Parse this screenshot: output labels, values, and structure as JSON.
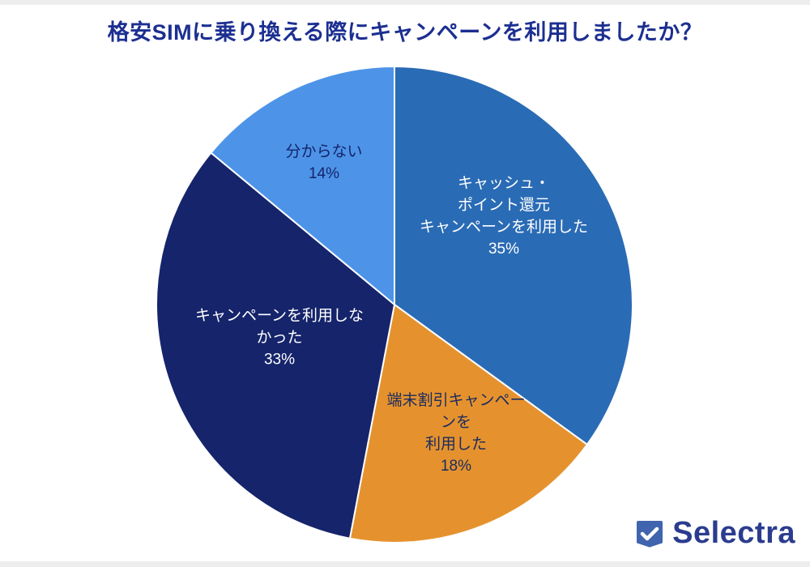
{
  "title": "格安SIMに乗り換える際にキャンペーンを利用しましたか？",
  "colors": {
    "title": "#1c2f91",
    "background": "#ffffff",
    "logo_text": "#2b3c8f",
    "logo_icon": "#4064ae"
  },
  "logo": {
    "text": "Selectra",
    "icon": "selectra-check-icon"
  },
  "chart_data": {
    "type": "pie",
    "title": "格安SIMに乗り換える際にキャンペーンを利用しましたか？",
    "start_angle_deg": 0,
    "direction": "clockwise",
    "legend": "none",
    "segments": [
      {
        "label": "キャッシュ・ポイント還元キャンペーンを利用した",
        "label_lines": [
          "キャッシュ・",
          "ポイント還元",
          "キャンペーンを利用した",
          "35%"
        ],
        "value": 35,
        "pct_text": "35%",
        "color": "#2a6bb5",
        "text_color": "#ffffff"
      },
      {
        "label": "端末割引キャンペーンを利用した",
        "label_lines": [
          "端末割引キャンペー",
          "ンを",
          "利用した",
          "18%"
        ],
        "value": 18,
        "pct_text": "18%",
        "color": "#e5922e",
        "text_color": "#1a2b5f"
      },
      {
        "label": "キャンペーンを利用しなかった",
        "label_lines": [
          "キャンペーンを利用しな",
          "かった",
          "33%"
        ],
        "value": 33,
        "pct_text": "33%",
        "color": "#15246b",
        "text_color": "#ffffff"
      },
      {
        "label": "分からない",
        "label_lines": [
          "分からない",
          "14%"
        ],
        "value": 14,
        "pct_text": "14%",
        "color": "#4d94e8",
        "text_color": "#15246b"
      }
    ]
  }
}
